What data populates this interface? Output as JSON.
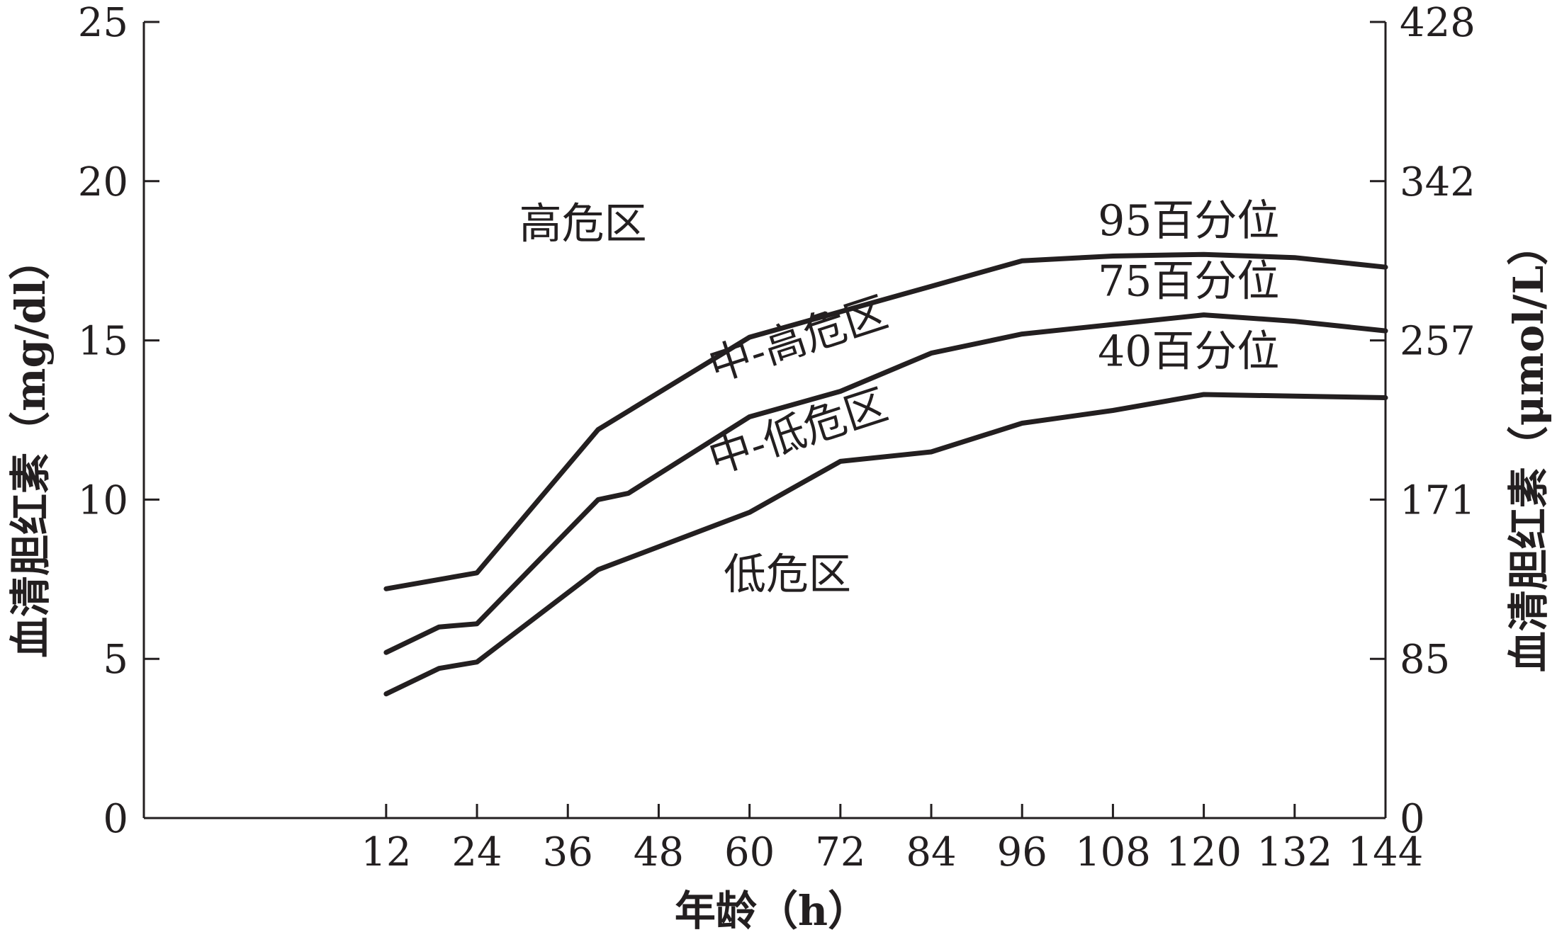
{
  "chart_data": {
    "type": "line",
    "title": "",
    "xlabel": "年龄（h）",
    "ylabel": "血清胆红素（mg/dl）",
    "ylabel_right": "血清胆红素（μmol/L）",
    "xlim": [
      -20,
      144
    ],
    "ylim": [
      0,
      25
    ],
    "x_ticks": [
      12,
      24,
      36,
      48,
      60,
      72,
      84,
      96,
      108,
      120,
      132,
      144
    ],
    "y_ticks": [
      0,
      5,
      10,
      15,
      20,
      25
    ],
    "y_ticks_right": [
      {
        "value": 0,
        "label": "0"
      },
      {
        "value": 5,
        "label": "85"
      },
      {
        "value": 10,
        "label": "171"
      },
      {
        "value": 15,
        "label": "257"
      },
      {
        "value": 20,
        "label": "342"
      },
      {
        "value": 25,
        "label": "428"
      }
    ],
    "grid": false,
    "series": [
      {
        "name": "95百分位",
        "x": [
          12,
          24,
          40,
          60,
          72,
          84,
          96,
          108,
          120,
          132,
          144
        ],
        "y": [
          7.2,
          7.7,
          12.2,
          15.1,
          15.9,
          16.7,
          17.5,
          17.65,
          17.7,
          17.6,
          17.3
        ]
      },
      {
        "name": "75百分位",
        "x": [
          12,
          19,
          24,
          40,
          44,
          60,
          72,
          84,
          96,
          108,
          120,
          132,
          144
        ],
        "y": [
          5.2,
          6.0,
          6.1,
          10.0,
          10.2,
          12.6,
          13.4,
          14.6,
          15.2,
          15.5,
          15.8,
          15.6,
          15.3
        ]
      },
      {
        "name": "40百分位",
        "x": [
          12,
          19,
          24,
          40,
          60,
          72,
          84,
          96,
          108,
          120,
          132,
          144
        ],
        "y": [
          3.9,
          4.7,
          4.9,
          7.8,
          9.6,
          11.2,
          11.5,
          12.4,
          12.8,
          13.3,
          13.25,
          13.2
        ]
      }
    ],
    "annotations": [
      {
        "text": "高危区",
        "x": 38,
        "y": 18.2,
        "rotate": 0
      },
      {
        "text": "中-高危区",
        "x": 67,
        "y": 14.6,
        "rotate": -18
      },
      {
        "text": "中-低危区",
        "x": 67,
        "y": 11.7,
        "rotate": -18
      },
      {
        "text": "低危区",
        "x": 65,
        "y": 7.2,
        "rotate": 0
      },
      {
        "text": "95百分位",
        "x": 118,
        "y": 18.3,
        "rotate": 0
      },
      {
        "text": "75百分位",
        "x": 118,
        "y": 16.4,
        "rotate": 0
      },
      {
        "text": "40百分位",
        "x": 118,
        "y": 14.2,
        "rotate": 0
      }
    ]
  }
}
